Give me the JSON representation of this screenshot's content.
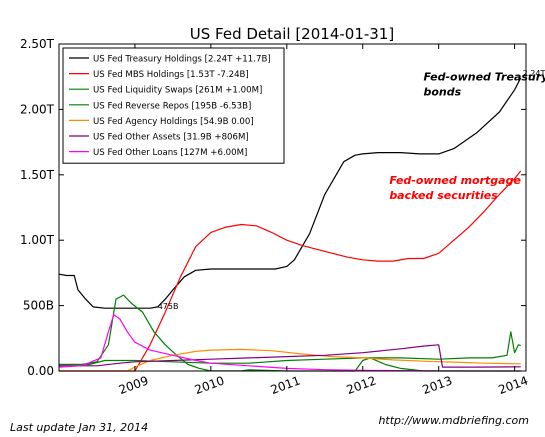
{
  "chart_data": {
    "type": "line",
    "title": "US Fed Detail  [2014-01-31]",
    "xlabel": "",
    "ylabel": "",
    "xlim": [
      2008.0,
      2014.15
    ],
    "ylim": [
      0,
      2.5
    ],
    "y_unit": "trillions USD",
    "yticks": [
      {
        "value": 0,
        "label": "0.00"
      },
      {
        "value": 0.5,
        "label": "500B"
      },
      {
        "value": 1.0,
        "label": "1.00T"
      },
      {
        "value": 1.5,
        "label": "1.50T"
      },
      {
        "value": 2.0,
        "label": "2.00T"
      },
      {
        "value": 2.5,
        "label": "2.50T"
      }
    ],
    "xticks": [
      {
        "value": 2009,
        "label": "2009"
      },
      {
        "value": 2010,
        "label": "2010"
      },
      {
        "value": 2011,
        "label": "2011"
      },
      {
        "value": 2012,
        "label": "2012"
      },
      {
        "value": 2013,
        "label": "2013"
      },
      {
        "value": 2014,
        "label": "2014"
      }
    ],
    "grid": false,
    "legend_position": "top-left",
    "series": [
      {
        "name": "US Fed Treasury Holdings [2.24T +11.7B]",
        "color": "#000000",
        "points": [
          [
            2008.0,
            0.74
          ],
          [
            2008.1,
            0.73
          ],
          [
            2008.2,
            0.73
          ],
          [
            2008.25,
            0.62
          ],
          [
            2008.35,
            0.55
          ],
          [
            2008.45,
            0.49
          ],
          [
            2008.6,
            0.48
          ],
          [
            2008.8,
            0.48
          ],
          [
            2009.0,
            0.48
          ],
          [
            2009.2,
            0.48
          ],
          [
            2009.3,
            0.49
          ],
          [
            2009.4,
            0.55
          ],
          [
            2009.5,
            0.62
          ],
          [
            2009.65,
            0.72
          ],
          [
            2009.8,
            0.77
          ],
          [
            2010.0,
            0.78
          ],
          [
            2010.5,
            0.78
          ],
          [
            2010.85,
            0.78
          ],
          [
            2011.0,
            0.8
          ],
          [
            2011.1,
            0.85
          ],
          [
            2011.3,
            1.05
          ],
          [
            2011.5,
            1.35
          ],
          [
            2011.75,
            1.6
          ],
          [
            2011.9,
            1.65
          ],
          [
            2012.0,
            1.66
          ],
          [
            2012.2,
            1.67
          ],
          [
            2012.5,
            1.67
          ],
          [
            2012.75,
            1.66
          ],
          [
            2013.0,
            1.66
          ],
          [
            2013.2,
            1.7
          ],
          [
            2013.5,
            1.82
          ],
          [
            2013.8,
            1.98
          ],
          [
            2014.0,
            2.15
          ],
          [
            2014.08,
            2.24
          ]
        ],
        "end_label": "2.24T"
      },
      {
        "name": "US Fed MBS Holdings [1.53T -7.24B]",
        "color": "#ff0000",
        "points": [
          [
            2008.0,
            0.0
          ],
          [
            2009.0,
            0.0
          ],
          [
            2009.05,
            0.05
          ],
          [
            2009.2,
            0.2
          ],
          [
            2009.4,
            0.45
          ],
          [
            2009.6,
            0.72
          ],
          [
            2009.8,
            0.95
          ],
          [
            2010.0,
            1.06
          ],
          [
            2010.2,
            1.1
          ],
          [
            2010.4,
            1.12
          ],
          [
            2010.6,
            1.11
          ],
          [
            2010.8,
            1.06
          ],
          [
            2011.0,
            1.0
          ],
          [
            2011.2,
            0.96
          ],
          [
            2011.4,
            0.93
          ],
          [
            2011.6,
            0.9
          ],
          [
            2011.8,
            0.87
          ],
          [
            2012.0,
            0.85
          ],
          [
            2012.2,
            0.84
          ],
          [
            2012.4,
            0.84
          ],
          [
            2012.6,
            0.86
          ],
          [
            2012.8,
            0.86
          ],
          [
            2013.0,
            0.9
          ],
          [
            2013.2,
            1.0
          ],
          [
            2013.4,
            1.1
          ],
          [
            2013.6,
            1.22
          ],
          [
            2013.8,
            1.35
          ],
          [
            2014.0,
            1.47
          ],
          [
            2014.08,
            1.53
          ]
        ]
      },
      {
        "name": "US Fed Liquidity Swaps [261M +1.00M]",
        "color": "#008000",
        "points": [
          [
            2008.0,
            0.05
          ],
          [
            2008.3,
            0.05
          ],
          [
            2008.5,
            0.07
          ],
          [
            2008.65,
            0.2
          ],
          [
            2008.75,
            0.55
          ],
          [
            2008.85,
            0.58
          ],
          [
            2008.95,
            0.52
          ],
          [
            2009.1,
            0.45
          ],
          [
            2009.25,
            0.3
          ],
          [
            2009.4,
            0.2
          ],
          [
            2009.55,
            0.12
          ],
          [
            2009.7,
            0.05
          ],
          [
            2009.85,
            0.02
          ],
          [
            2010.0,
            0.001
          ],
          [
            2010.4,
            0.001
          ],
          [
            2010.5,
            0.009
          ],
          [
            2011.0,
            0.0
          ],
          [
            2011.9,
            0.0
          ],
          [
            2012.0,
            0.08
          ],
          [
            2012.1,
            0.1
          ],
          [
            2012.3,
            0.05
          ],
          [
            2012.5,
            0.02
          ],
          [
            2012.8,
            0.0
          ],
          [
            2013.0,
            0.0
          ],
          [
            2013.5,
            0.0
          ],
          [
            2014.08,
            0.0
          ]
        ]
      },
      {
        "name": "US Fed Reverse Repos [195B -6.53B]",
        "color": "#008000",
        "points": [
          [
            2008.0,
            0.05
          ],
          [
            2008.4,
            0.05
          ],
          [
            2008.6,
            0.08
          ],
          [
            2009.0,
            0.08
          ],
          [
            2009.5,
            0.07
          ],
          [
            2010.0,
            0.06
          ],
          [
            2010.5,
            0.06
          ],
          [
            2011.0,
            0.08
          ],
          [
            2011.5,
            0.09
          ],
          [
            2012.0,
            0.1
          ],
          [
            2012.5,
            0.1
          ],
          [
            2013.0,
            0.09
          ],
          [
            2013.4,
            0.1
          ],
          [
            2013.7,
            0.1
          ],
          [
            2013.9,
            0.12
          ],
          [
            2013.95,
            0.3
          ],
          [
            2014.0,
            0.14
          ],
          [
            2014.05,
            0.2
          ],
          [
            2014.08,
            0.195
          ]
        ]
      },
      {
        "name": "US Fed Agency Holdings [54.9B 0.00]",
        "color": "#ff8c00",
        "points": [
          [
            2008.0,
            0.0
          ],
          [
            2008.9,
            0.0
          ],
          [
            2009.0,
            0.03
          ],
          [
            2009.2,
            0.08
          ],
          [
            2009.5,
            0.12
          ],
          [
            2009.8,
            0.15
          ],
          [
            2010.0,
            0.16
          ],
          [
            2010.4,
            0.165
          ],
          [
            2010.8,
            0.155
          ],
          [
            2011.2,
            0.13
          ],
          [
            2011.6,
            0.11
          ],
          [
            2012.0,
            0.1
          ],
          [
            2012.4,
            0.085
          ],
          [
            2012.8,
            0.075
          ],
          [
            2013.2,
            0.068
          ],
          [
            2013.6,
            0.06
          ],
          [
            2014.08,
            0.055
          ]
        ]
      },
      {
        "name": "US Fed Other Assets [31.9B +806M]",
        "color": "#800080",
        "points": [
          [
            2008.0,
            0.04
          ],
          [
            2008.5,
            0.04
          ],
          [
            2008.8,
            0.06
          ],
          [
            2009.0,
            0.07
          ],
          [
            2009.5,
            0.08
          ],
          [
            2010.0,
            0.09
          ],
          [
            2010.5,
            0.1
          ],
          [
            2011.0,
            0.11
          ],
          [
            2011.5,
            0.12
          ],
          [
            2012.0,
            0.14
          ],
          [
            2012.5,
            0.17
          ],
          [
            2012.8,
            0.19
          ],
          [
            2013.0,
            0.2
          ],
          [
            2013.05,
            0.03
          ],
          [
            2013.5,
            0.03
          ],
          [
            2014.08,
            0.032
          ]
        ]
      },
      {
        "name": "US Fed Other Loans [127M +6.00M]",
        "color": "#ff00ff",
        "points": [
          [
            2008.0,
            0.03
          ],
          [
            2008.3,
            0.04
          ],
          [
            2008.55,
            0.1
          ],
          [
            2008.65,
            0.3
          ],
          [
            2008.72,
            0.43
          ],
          [
            2008.8,
            0.4
          ],
          [
            2008.9,
            0.3
          ],
          [
            2009.0,
            0.22
          ],
          [
            2009.2,
            0.16
          ],
          [
            2009.5,
            0.12
          ],
          [
            2009.8,
            0.08
          ],
          [
            2010.0,
            0.06
          ],
          [
            2010.5,
            0.04
          ],
          [
            2011.0,
            0.02
          ],
          [
            2011.5,
            0.01
          ],
          [
            2012.0,
            0.005
          ],
          [
            2013.0,
            0.001
          ],
          [
            2014.08,
            0.000127
          ]
        ]
      }
    ],
    "annotations": [
      {
        "text": "475B",
        "x": 2009.3,
        "y": 0.475,
        "color": "#000000"
      },
      {
        "text": "Fed-owned Treasury\nbonds",
        "x": 2012.8,
        "y": 2.22,
        "color": "#000000"
      },
      {
        "text": "Fed-owned mortgage\nbacked securities",
        "x": 2012.35,
        "y": 1.43,
        "color": "#ff0000"
      }
    ]
  },
  "footer": {
    "left": "Last update Jan 31, 2014",
    "right": "http://www.mdbriefing.com"
  }
}
